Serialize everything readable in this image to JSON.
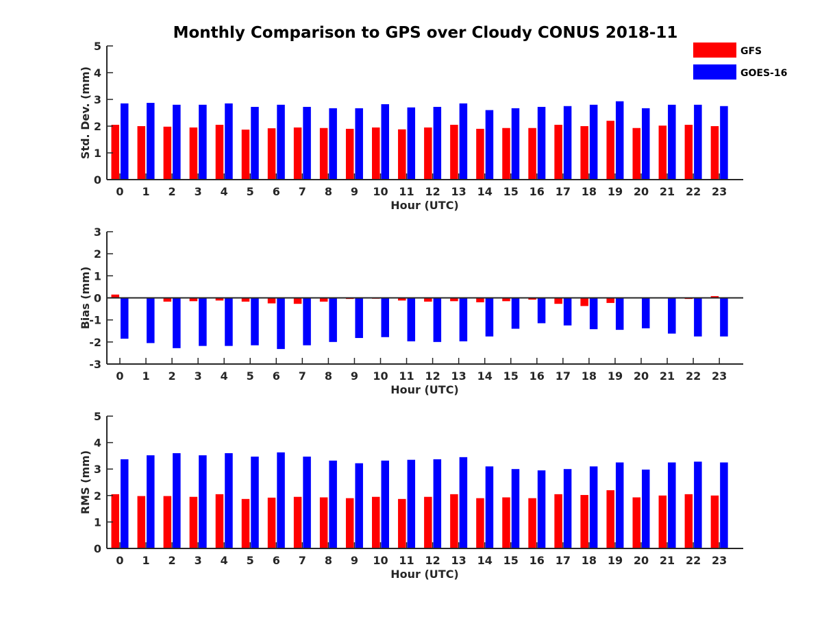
{
  "chart_data": {
    "type": "bar",
    "title": "Monthly Comparison to GPS over Cloudy CONUS 2018-11",
    "legend": {
      "placement": "top-right",
      "entries": [
        {
          "name": "GFS",
          "color": "#ff0000"
        },
        {
          "name": "GOES-16",
          "color": "#0000ff"
        }
      ]
    },
    "categories": [
      "0",
      "1",
      "2",
      "3",
      "4",
      "5",
      "6",
      "7",
      "8",
      "9",
      "10",
      "11",
      "12",
      "13",
      "14",
      "15",
      "16",
      "17",
      "18",
      "19",
      "20",
      "21",
      "22",
      "23"
    ],
    "panels": [
      {
        "ylabel": "Std. Dev. (mm)",
        "xlabel": "Hour (UTC)",
        "ylim": [
          0,
          5
        ],
        "yticks": [
          "0",
          "1",
          "2",
          "3",
          "4",
          "5"
        ],
        "series": [
          {
            "name": "GFS",
            "color": "#ff0000",
            "values": [
              2.05,
              2.0,
              1.98,
              1.95,
              2.05,
              1.87,
              1.92,
              1.95,
              1.93,
              1.9,
              1.95,
              1.88,
              1.95,
              2.05,
              1.9,
              1.93,
              1.93,
              2.05,
              2.0,
              2.2,
              1.93,
              2.02,
              2.05,
              2.0
            ]
          },
          {
            "name": "GOES-16",
            "color": "#0000ff",
            "values": [
              2.85,
              2.87,
              2.8,
              2.8,
              2.85,
              2.72,
              2.8,
              2.72,
              2.67,
              2.67,
              2.82,
              2.7,
              2.72,
              2.85,
              2.6,
              2.67,
              2.72,
              2.75,
              2.8,
              2.93,
              2.67,
              2.8,
              2.8,
              2.75
            ]
          }
        ]
      },
      {
        "ylabel": "Bias (mm)",
        "xlabel": "Hour (UTC)",
        "ylim": [
          -3,
          3
        ],
        "yticks": [
          "-3",
          "-2",
          "-1",
          "0",
          "1",
          "2",
          "3"
        ],
        "series": [
          {
            "name": "GFS",
            "color": "#ff0000",
            "values": [
              0.15,
              -0.02,
              -0.17,
              -0.15,
              -0.12,
              -0.17,
              -0.25,
              -0.27,
              -0.17,
              -0.05,
              -0.04,
              -0.12,
              -0.17,
              -0.15,
              -0.2,
              -0.15,
              -0.08,
              -0.27,
              -0.37,
              -0.23,
              -0.02,
              -0.02,
              -0.05,
              0.08
            ]
          },
          {
            "name": "GOES-16",
            "color": "#0000ff",
            "values": [
              -1.85,
              -2.05,
              -2.28,
              -2.18,
              -2.18,
              -2.15,
              -2.32,
              -2.15,
              -2.0,
              -1.82,
              -1.78,
              -1.97,
              -2.0,
              -1.97,
              -1.75,
              -1.4,
              -1.15,
              -1.25,
              -1.42,
              -1.45,
              -1.38,
              -1.62,
              -1.75,
              -1.75
            ]
          }
        ]
      },
      {
        "ylabel": "RMS (mm)",
        "xlabel": "Hour (UTC)",
        "ylim": [
          0,
          5
        ],
        "yticks": [
          "0",
          "1",
          "2",
          "3",
          "4",
          "5"
        ],
        "series": [
          {
            "name": "GFS",
            "color": "#ff0000",
            "values": [
              2.05,
              1.98,
              1.98,
              1.95,
              2.05,
              1.87,
              1.92,
              1.95,
              1.93,
              1.9,
              1.95,
              1.87,
              1.95,
              2.05,
              1.9,
              1.93,
              1.9,
              2.05,
              2.02,
              2.2,
              1.93,
              2.0,
              2.05,
              2.0
            ]
          },
          {
            "name": "GOES-16",
            "color": "#0000ff",
            "values": [
              3.37,
              3.52,
              3.6,
              3.52,
              3.6,
              3.47,
              3.63,
              3.47,
              3.32,
              3.22,
              3.32,
              3.35,
              3.37,
              3.45,
              3.1,
              3.0,
              2.95,
              3.0,
              3.1,
              3.25,
              2.98,
              3.25,
              3.28,
              3.25
            ]
          }
        ]
      }
    ]
  }
}
